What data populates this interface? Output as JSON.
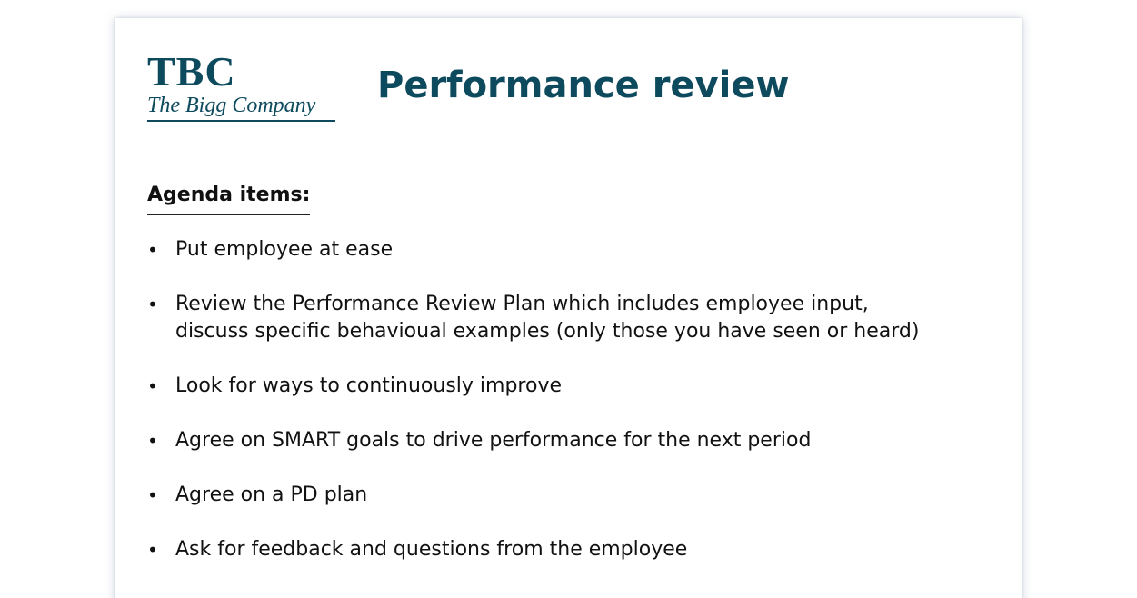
{
  "logo": {
    "mark": "TBC",
    "tagline": "The Bigg Company"
  },
  "title": "Performance review",
  "agenda": {
    "heading": "Agenda items:",
    "bullet": "•",
    "items": [
      {
        "lines": [
          "Put employee at ease"
        ]
      },
      {
        "lines": [
          "Review the Performance Review Plan which includes employee input,",
          "discuss specific behavioual examples (only those you have seen or heard)"
        ]
      },
      {
        "lines": [
          "Look for ways to continuously improve"
        ]
      },
      {
        "lines": [
          "Agree on SMART goals to drive performance for the next period"
        ]
      },
      {
        "lines": [
          "Agree on a PD plan"
        ]
      },
      {
        "lines": [
          "Ask for feedback and questions from the employee"
        ]
      }
    ]
  },
  "colors": {
    "brand": "#0d4a5e",
    "text": "#111111",
    "background": "#ffffff"
  }
}
